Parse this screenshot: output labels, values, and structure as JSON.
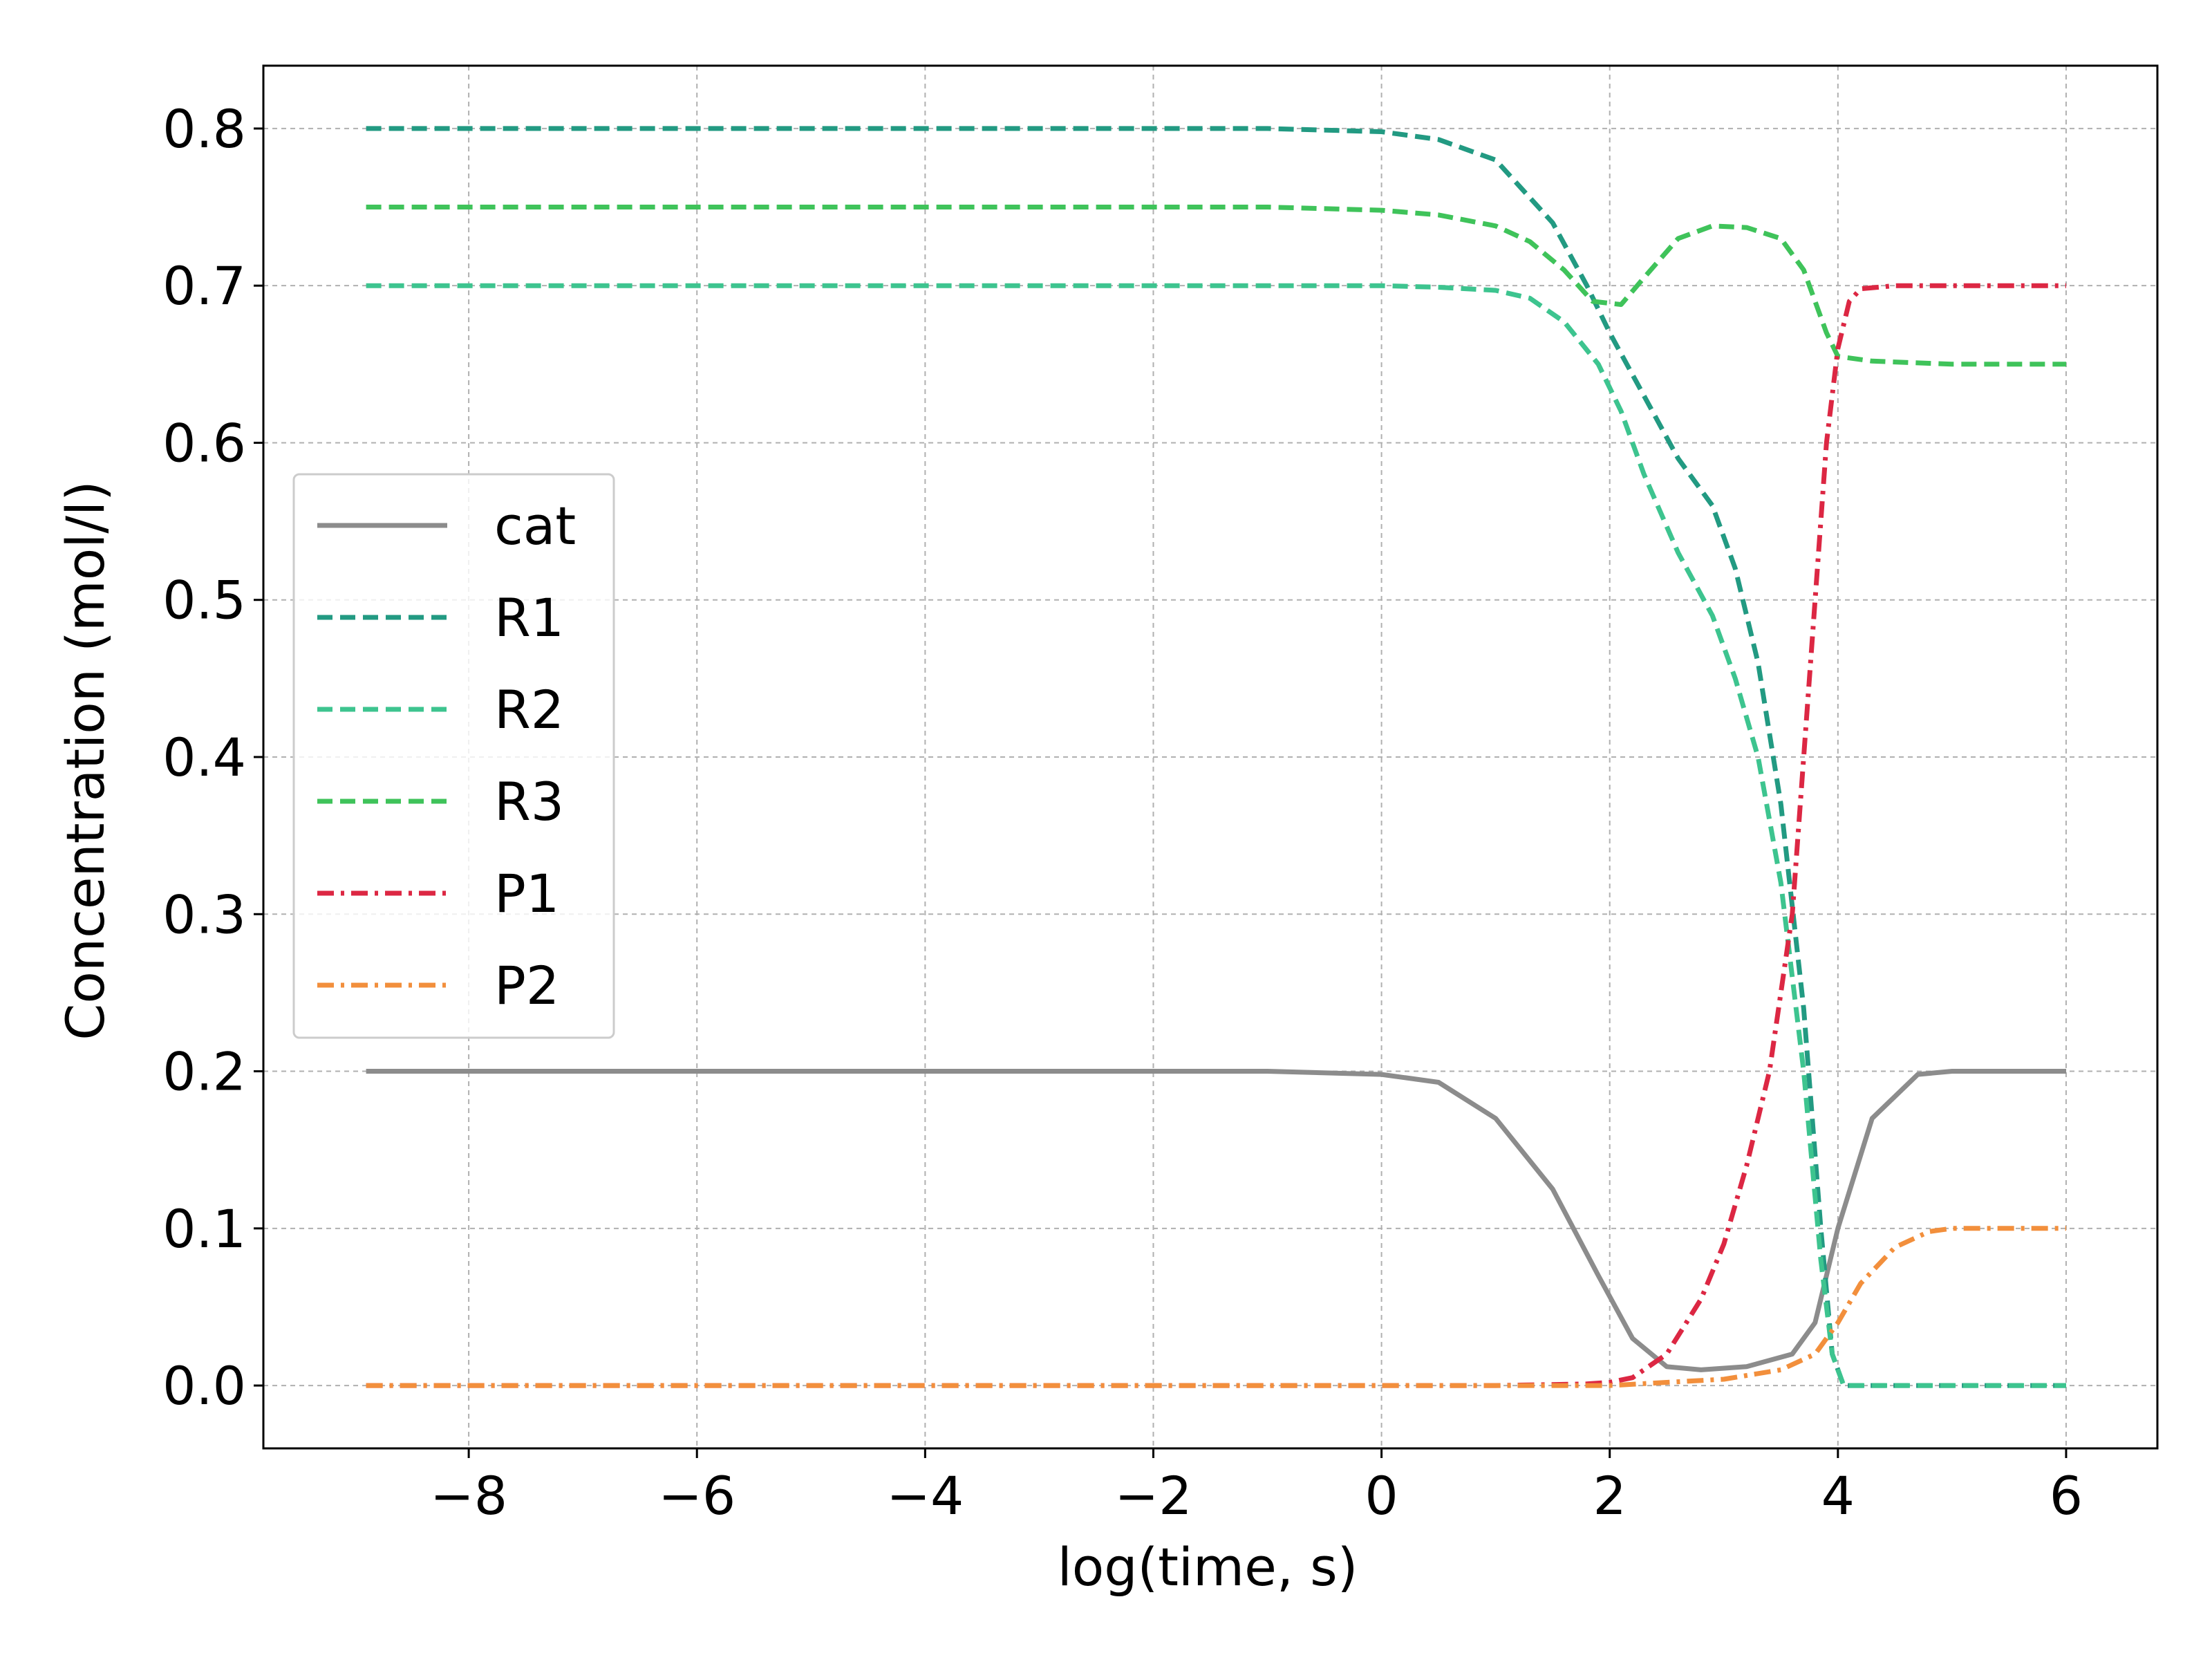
{
  "chart_data": {
    "type": "line",
    "title": "",
    "xlabel": "log(time, s)",
    "ylabel": "Concentration (mol/l)",
    "xlim": [
      -9.8,
      6.8
    ],
    "ylim": [
      -0.04,
      0.84
    ],
    "xticks": [
      -8,
      -6,
      -4,
      -2,
      0,
      2,
      4,
      6
    ],
    "xtick_labels": [
      "−8",
      "−6",
      "−4",
      "−2",
      "0",
      "2",
      "4",
      "6"
    ],
    "yticks": [
      0.0,
      0.1,
      0.2,
      0.3,
      0.4,
      0.5,
      0.6,
      0.7,
      0.8
    ],
    "ytick_labels": [
      "0.0",
      "0.1",
      "0.2",
      "0.3",
      "0.4",
      "0.5",
      "0.6",
      "0.7",
      "0.8"
    ],
    "grid": true,
    "legend_position": "center-left",
    "series": [
      {
        "name": "cat",
        "color": "#8c8c8c",
        "style": "solid",
        "x": [
          -8.9,
          -4,
          -1,
          0,
          0.5,
          1.0,
          1.5,
          1.9,
          2.2,
          2.5,
          2.8,
          3.2,
          3.6,
          3.8,
          4.0,
          4.3,
          4.7,
          5.0,
          6.0
        ],
        "y": [
          0.2,
          0.2,
          0.2,
          0.198,
          0.193,
          0.17,
          0.125,
          0.07,
          0.03,
          0.012,
          0.01,
          0.012,
          0.02,
          0.04,
          0.1,
          0.17,
          0.198,
          0.2,
          0.2
        ]
      },
      {
        "name": "R1",
        "color": "#229a82",
        "style": "dashed",
        "x": [
          -8.9,
          -4,
          -1,
          0,
          0.5,
          1.0,
          1.5,
          1.8,
          2.0,
          2.3,
          2.6,
          2.9,
          3.1,
          3.3,
          3.5,
          3.7,
          3.85,
          3.95,
          4.05,
          6.0
        ],
        "y": [
          0.8,
          0.8,
          0.8,
          0.798,
          0.793,
          0.78,
          0.74,
          0.7,
          0.67,
          0.63,
          0.59,
          0.56,
          0.52,
          0.46,
          0.37,
          0.24,
          0.1,
          0.02,
          0.0,
          0.0
        ]
      },
      {
        "name": "R2",
        "color": "#3dc48f",
        "style": "dashed",
        "x": [
          -8.9,
          -4,
          -1,
          0,
          0.5,
          1.0,
          1.3,
          1.6,
          1.9,
          2.1,
          2.3,
          2.6,
          2.9,
          3.1,
          3.3,
          3.5,
          3.7,
          3.85,
          3.95,
          4.05,
          6.0
        ],
        "y": [
          0.7,
          0.7,
          0.7,
          0.7,
          0.699,
          0.697,
          0.692,
          0.677,
          0.65,
          0.62,
          0.58,
          0.53,
          0.49,
          0.45,
          0.4,
          0.32,
          0.2,
          0.08,
          0.02,
          0.0,
          0.0
        ]
      },
      {
        "name": "R3",
        "color": "#3fc35a",
        "style": "dashed",
        "x": [
          -8.9,
          -4,
          -1,
          0,
          0.5,
          1.0,
          1.3,
          1.6,
          1.85,
          2.1,
          2.3,
          2.6,
          2.9,
          3.2,
          3.5,
          3.7,
          3.8,
          3.9,
          4.0,
          4.3,
          5.0,
          6.0
        ],
        "y": [
          0.75,
          0.75,
          0.75,
          0.748,
          0.745,
          0.738,
          0.728,
          0.71,
          0.69,
          0.688,
          0.705,
          0.73,
          0.738,
          0.737,
          0.73,
          0.71,
          0.69,
          0.67,
          0.655,
          0.652,
          0.65,
          0.65
        ]
      },
      {
        "name": "P1",
        "color": "#dc2743",
        "style": "dashdot",
        "x": [
          -8.9,
          -4,
          -1,
          0,
          1.0,
          1.8,
          2.0,
          2.2,
          2.5,
          2.8,
          3.0,
          3.2,
          3.4,
          3.6,
          3.75,
          3.9,
          4.0,
          4.1,
          4.2,
          4.5,
          6.0
        ],
        "y": [
          0.0,
          0.0,
          0.0,
          0.0,
          0.0,
          0.001,
          0.002,
          0.005,
          0.02,
          0.055,
          0.09,
          0.14,
          0.2,
          0.3,
          0.45,
          0.6,
          0.66,
          0.69,
          0.698,
          0.7,
          0.7
        ]
      },
      {
        "name": "P2",
        "color": "#f28f3c",
        "style": "dashdot",
        "x": [
          -8.9,
          -4,
          -1,
          0,
          1.0,
          2.0,
          2.5,
          3.0,
          3.5,
          3.8,
          4.0,
          4.2,
          4.5,
          4.8,
          5.0,
          6.0
        ],
        "y": [
          0.0,
          0.0,
          0.0,
          0.0,
          0.0,
          0.0,
          0.002,
          0.004,
          0.01,
          0.02,
          0.04,
          0.065,
          0.088,
          0.098,
          0.1,
          0.1
        ]
      }
    ]
  }
}
